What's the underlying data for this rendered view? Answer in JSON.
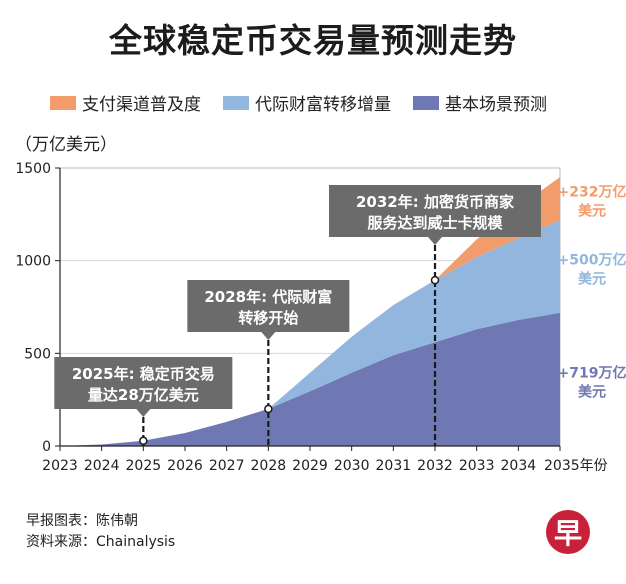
{
  "chart_data": {
    "type": "area",
    "title": "全球稳定币交易量预测走势",
    "unit_label": "（万亿美元）",
    "x": [
      2023,
      2024,
      2025,
      2026,
      2027,
      2028,
      2029,
      2030,
      2031,
      2032,
      2033,
      2034,
      2035
    ],
    "x_tick_labels": [
      "2023",
      "2024",
      "2025",
      "2026",
      "2027",
      "2028",
      "2029",
      "2030",
      "2031",
      "2032",
      "2033",
      "2034",
      "2035年份"
    ],
    "ylim": [
      0,
      1500
    ],
    "y_ticks": [
      0,
      500,
      1000,
      1500
    ],
    "y_tick_labels": [
      "0",
      "500",
      "1000",
      "1500"
    ],
    "series": [
      {
        "name": "基本场景预测",
        "color": "#6f78b3",
        "values": [
          0,
          8,
          28,
          70,
          130,
          200,
          295,
          395,
          490,
          560,
          630,
          680,
          719
        ]
      },
      {
        "name": "代际财富转移增量",
        "color": "#92b6de",
        "values": [
          0,
          0,
          0,
          0,
          0,
          0,
          100,
          195,
          270,
          335,
          390,
          440,
          500
        ]
      },
      {
        "name": "支付渠道普及度",
        "color": "#f39c6b",
        "values": [
          0,
          0,
          0,
          0,
          0,
          0,
          0,
          0,
          0,
          0,
          95,
          170,
          232
        ]
      }
    ],
    "legend": [
      {
        "label": "支付渠道普及度",
        "color": "#f39c6b"
      },
      {
        "label": "代际财富转移增量",
        "color": "#92b6de"
      },
      {
        "label": "基本场景预测",
        "color": "#6f78b3"
      }
    ],
    "end_labels": [
      {
        "line1": "+232万亿",
        "line2": "美元",
        "color": "#f39c6b"
      },
      {
        "line1": "+500万亿",
        "line2": "美元",
        "color": "#92b6de"
      },
      {
        "line1": "+719万亿",
        "line2": "美元",
        "color": "#6f78b3"
      }
    ],
    "annotations": [
      {
        "year": 2025,
        "value": 28,
        "line1": "2025年: 稳定币交易",
        "line2": "量达28万亿美元"
      },
      {
        "year": 2028,
        "value": 200,
        "line1": "2028年: 代际财富",
        "line2": "转移开始"
      },
      {
        "year": 2032,
        "value": 895,
        "line1": "2032年: 加密货币商家",
        "line2": "服务达到威士卡规模"
      }
    ]
  },
  "footer": {
    "credit": "早报图表：陈伟朝",
    "source": "资料来源：Chainalysis"
  },
  "logo_text": "早"
}
